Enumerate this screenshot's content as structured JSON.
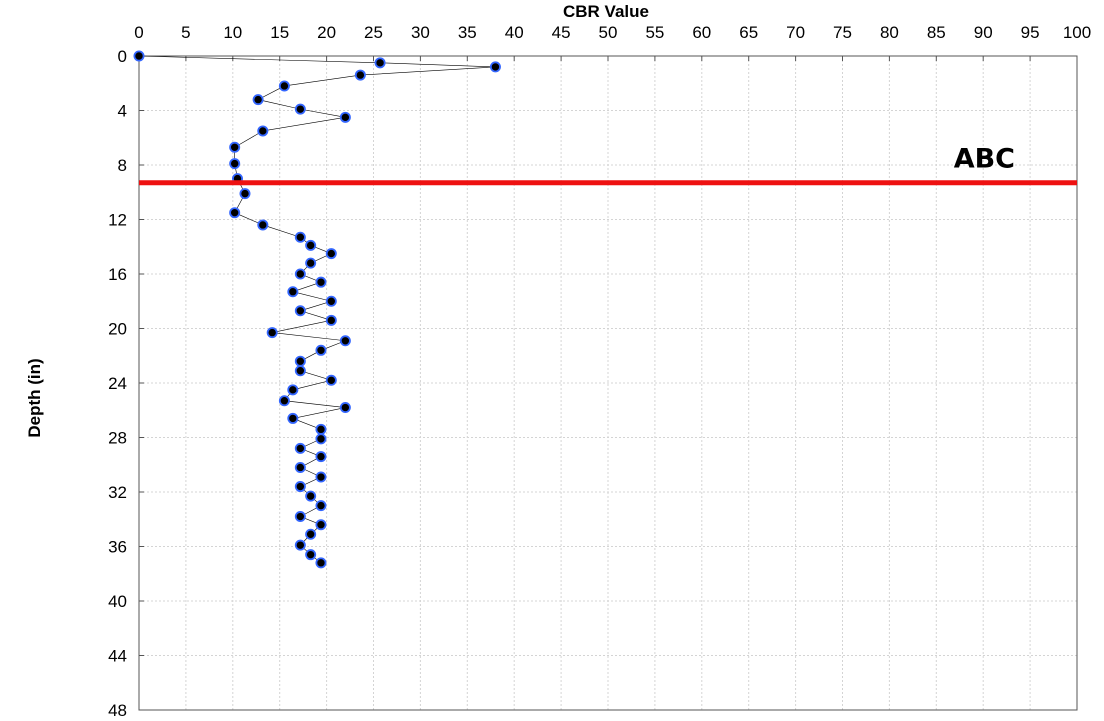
{
  "chart_data": {
    "type": "scatter",
    "title": "",
    "xlabel": "CBR Value",
    "ylabel": "Depth (in)",
    "xlim": [
      0,
      100
    ],
    "ylim": [
      0,
      48
    ],
    "y_inverted": true,
    "x_axis_position": "top",
    "xticks": [
      0,
      5,
      10,
      15,
      20,
      25,
      30,
      35,
      40,
      45,
      50,
      55,
      60,
      65,
      70,
      75,
      80,
      85,
      90,
      95,
      100
    ],
    "yticks": [
      0,
      4,
      8,
      12,
      16,
      20,
      24,
      28,
      32,
      36,
      40,
      44,
      48
    ],
    "grid": true,
    "series": [
      {
        "marker": "circle",
        "marker_color": "#000000",
        "marker_edge_color": "#3366ff",
        "line_color": "#000000",
        "points": [
          [
            0,
            0
          ],
          [
            25.7,
            0.5
          ],
          [
            38,
            0.8
          ],
          [
            23.6,
            1.4
          ],
          [
            15.5,
            2.2
          ],
          [
            12.7,
            3.2
          ],
          [
            17.2,
            3.9
          ],
          [
            22,
            4.5
          ],
          [
            13.2,
            5.5
          ],
          [
            10.2,
            6.7
          ],
          [
            10.2,
            7.9
          ],
          [
            10.5,
            9.0
          ],
          [
            11.3,
            10.1
          ],
          [
            10.2,
            11.5
          ],
          [
            13.2,
            12.4
          ],
          [
            17.2,
            13.3
          ],
          [
            18.3,
            13.9
          ],
          [
            20.5,
            14.5
          ],
          [
            18.3,
            15.2
          ],
          [
            17.2,
            16.0
          ],
          [
            19.4,
            16.6
          ],
          [
            16.4,
            17.3
          ],
          [
            20.5,
            18.0
          ],
          [
            17.2,
            18.7
          ],
          [
            20.5,
            19.4
          ],
          [
            14.2,
            20.3
          ],
          [
            22,
            20.9
          ],
          [
            19.4,
            21.6
          ],
          [
            17.2,
            22.4
          ],
          [
            17.2,
            23.1
          ],
          [
            20.5,
            23.8
          ],
          [
            16.4,
            24.5
          ],
          [
            15.5,
            25.3
          ],
          [
            22,
            25.8
          ],
          [
            16.4,
            26.6
          ],
          [
            19.4,
            27.4
          ],
          [
            19.4,
            28.1
          ],
          [
            17.2,
            28.8
          ],
          [
            19.4,
            29.4
          ],
          [
            17.2,
            30.2
          ],
          [
            19.4,
            30.9
          ],
          [
            17.2,
            31.6
          ],
          [
            18.3,
            32.3
          ],
          [
            19.4,
            33.0
          ],
          [
            17.2,
            33.8
          ],
          [
            19.4,
            34.4
          ],
          [
            18.3,
            35.1
          ],
          [
            17.2,
            35.9
          ],
          [
            18.3,
            36.6
          ],
          [
            19.4,
            37.2
          ]
        ]
      }
    ],
    "reference_line": {
      "y": 9.3,
      "label": "ABC",
      "color": "#ee1111"
    }
  }
}
